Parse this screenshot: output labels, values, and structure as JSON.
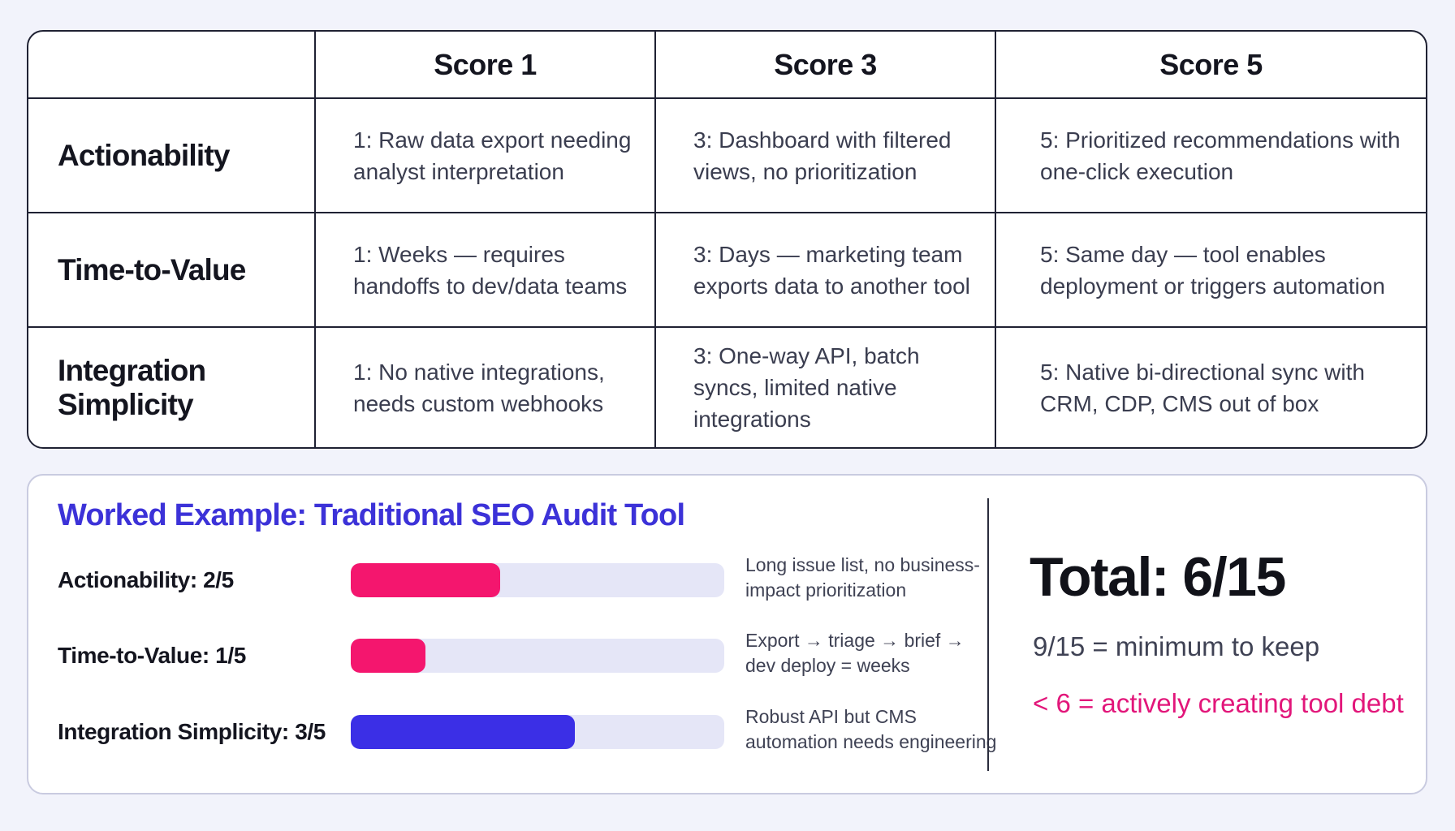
{
  "rubric": {
    "headers": [
      "",
      "Score 1",
      "Score 3",
      "Score 5"
    ],
    "rows": [
      {
        "label": "Actionability",
        "cells": [
          "1: Raw data export needing analyst interpretation",
          "3: Dashboard with filtered views, no prioritization",
          "5: Prioritized recommendations with one-click execution"
        ]
      },
      {
        "label": "Time-to-Value",
        "cells": [
          "1: Weeks — requires handoffs to dev/data teams",
          "3: Days — marketing team exports data to another tool",
          "5: Same day — tool enables deployment or triggers automation"
        ]
      },
      {
        "label": "Integration Simplicity",
        "cells": [
          "1: No native integrations, needs custom webhooks",
          "3: One-way API, batch syncs, limited native integrations",
          "5: Native bi-directional sync with CRM, CDP, CMS out of box"
        ]
      }
    ]
  },
  "example": {
    "title": "Worked Example: Traditional SEO Audit Tool",
    "metrics": [
      {
        "label": "Actionability: 2/5",
        "score": 2,
        "max": 5,
        "color": "#f4166e",
        "note": "Long issue list, no business-impact prioritization"
      },
      {
        "label": "Time-to-Value: 1/5",
        "score": 1,
        "max": 5,
        "color": "#f4166e",
        "note": "Export → triage → brief → dev deploy = weeks"
      },
      {
        "label": "Integration Simplicity: 3/5",
        "score": 3,
        "max": 5,
        "color": "#3b2fe6",
        "note": "Robust API but CMS automation needs engineering"
      }
    ],
    "total": "Total: 6/15",
    "keep_threshold": "9/15 = minimum to keep",
    "debt_threshold": "< 6 = actively creating tool debt"
  },
  "colors": {
    "accent_blue": "#3c32d8",
    "accent_pink": "#e2167a",
    "track": "#e5e6f7"
  }
}
